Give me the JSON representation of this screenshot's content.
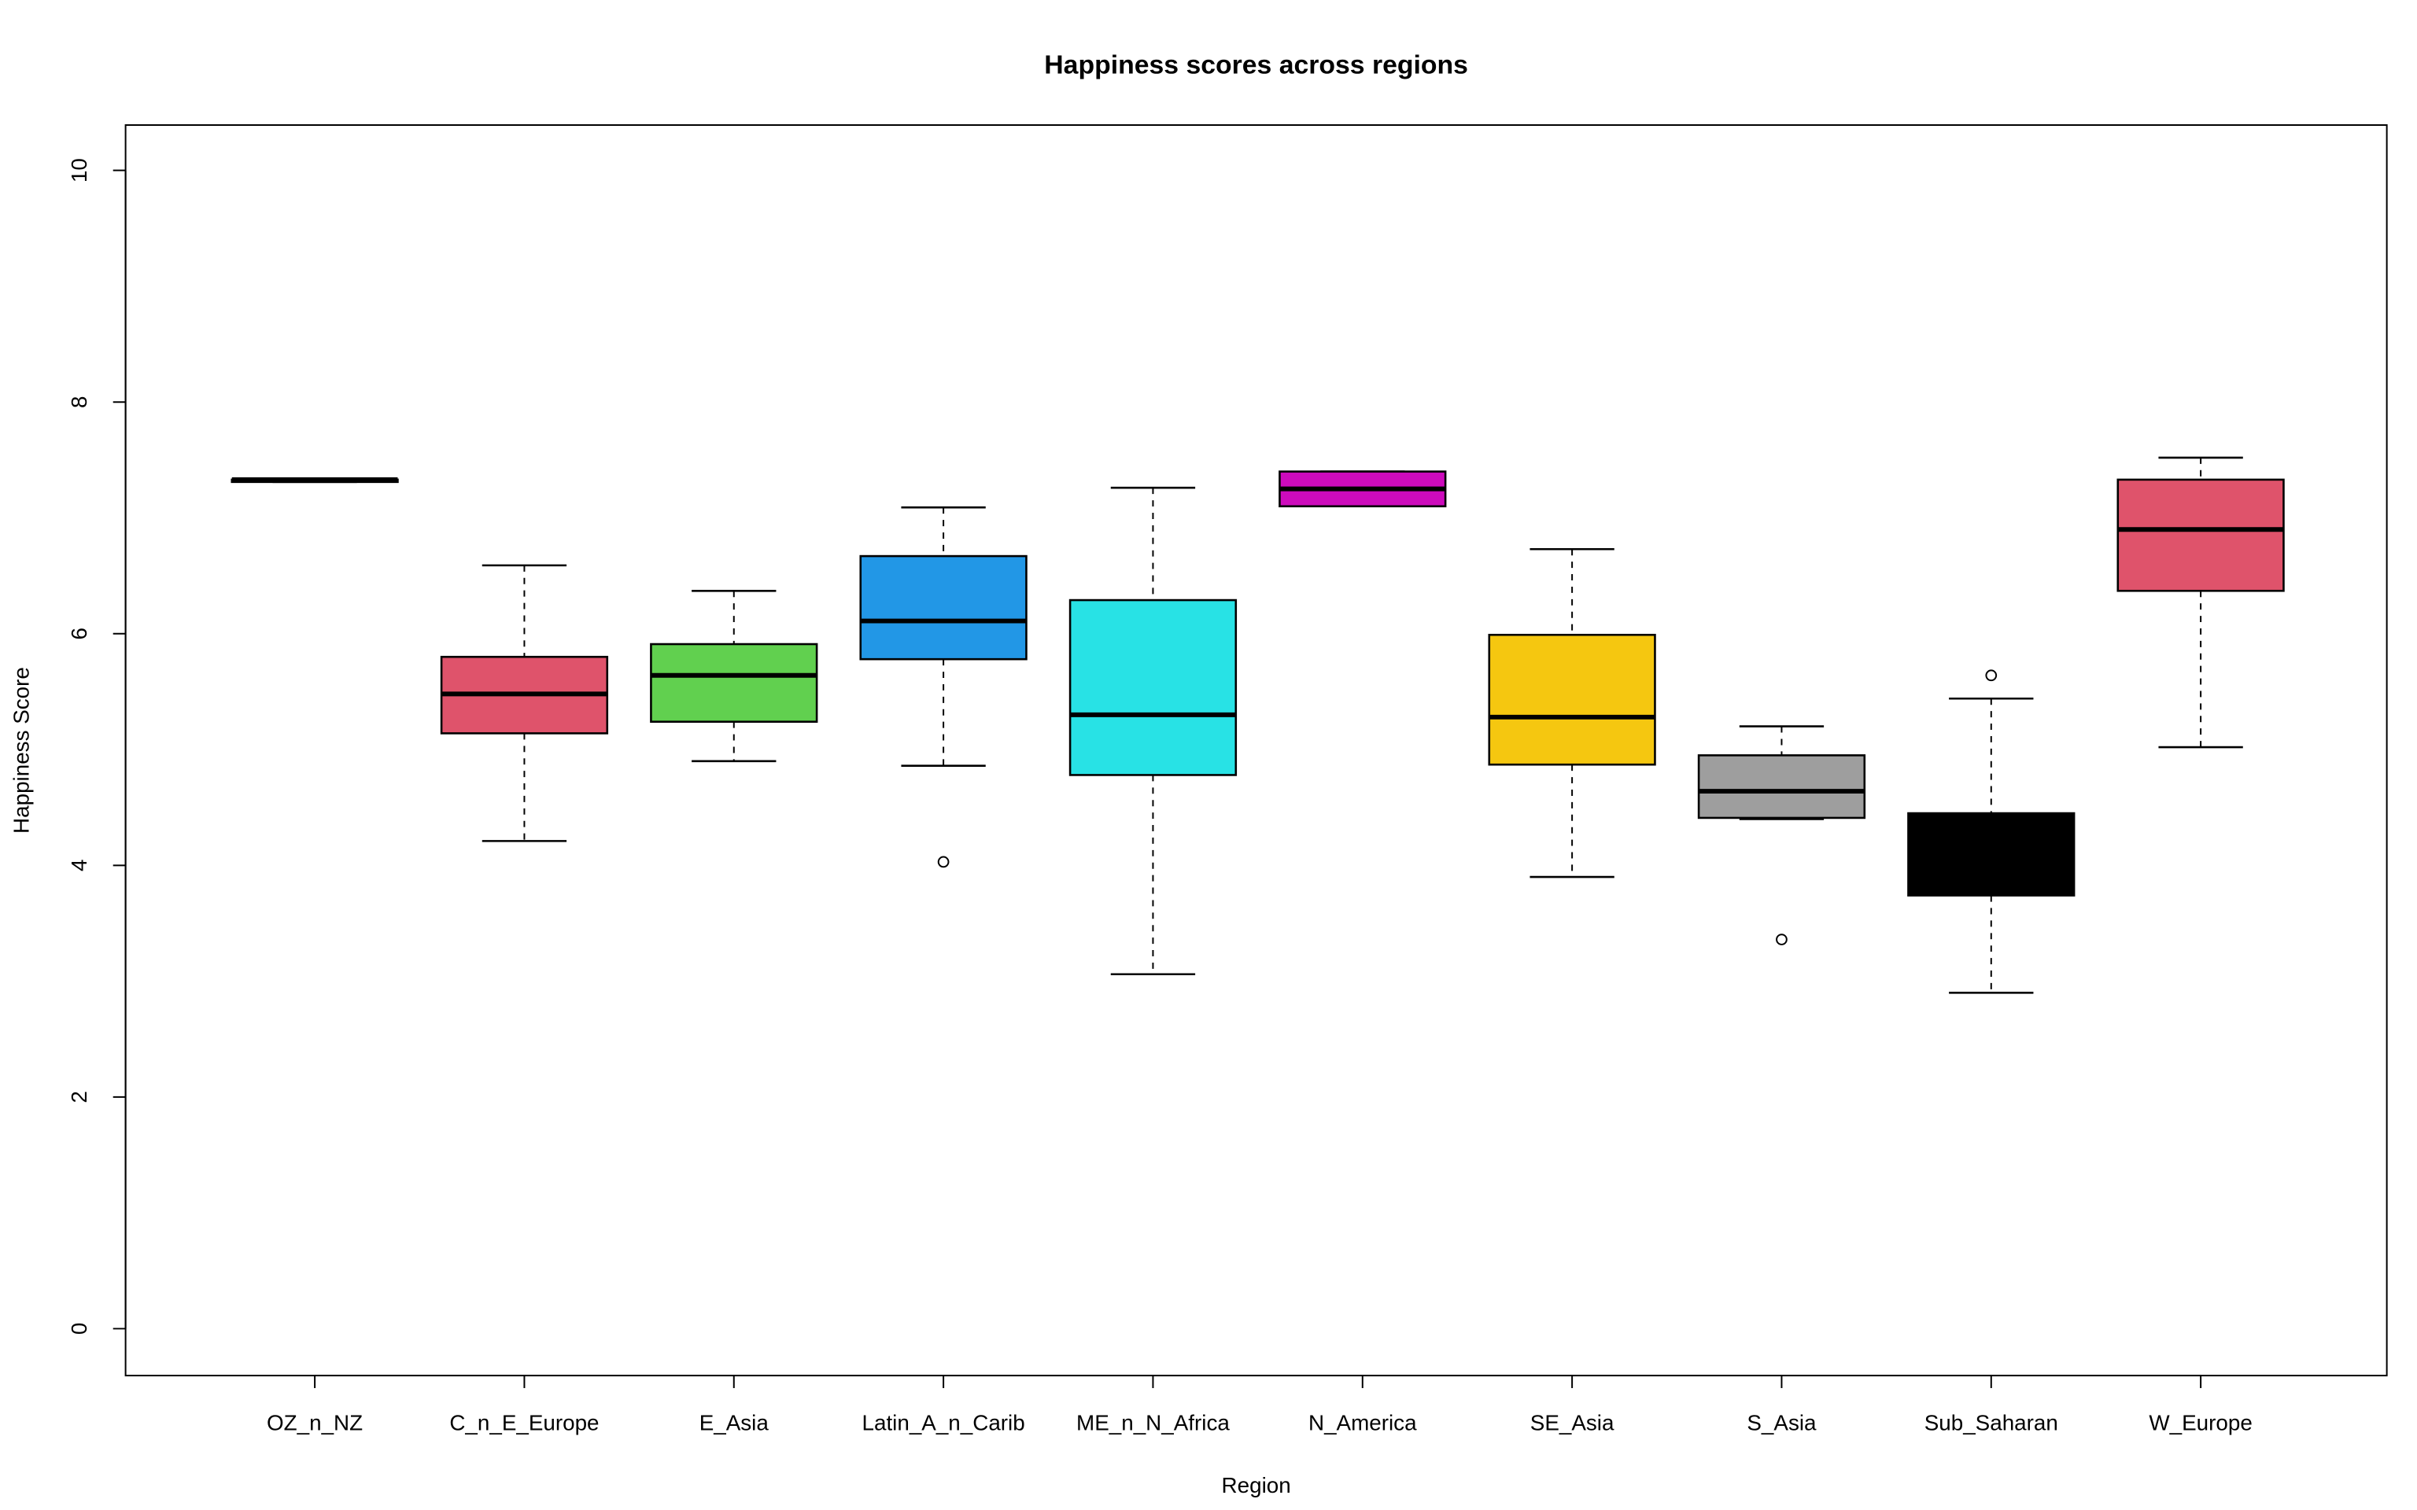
{
  "chart_data": {
    "type": "boxplot",
    "title": "Happiness scores across regions",
    "xlabel": "Region",
    "ylabel": "Happiness Score",
    "ylim": [
      0,
      10
    ],
    "yticks": [
      "0",
      "2",
      "4",
      "6",
      "8",
      "10"
    ],
    "grid": false,
    "categories": [
      "OZ_n_NZ",
      "C_n_E_Europe",
      "E_Asia",
      "Latin_A_n_Carib",
      "ME_n_N_Africa",
      "N_America",
      "SE_Asia",
      "S_Asia",
      "Sub_Saharan",
      "W_Europe"
    ],
    "boxes": [
      {
        "min": 7.31,
        "q1": 7.31,
        "median": 7.33,
        "q3": 7.33,
        "max": 7.33,
        "outliers": [],
        "color": "#000000"
      },
      {
        "min": 4.21,
        "q1": 5.14,
        "median": 5.48,
        "q3": 5.8,
        "max": 6.59,
        "outliers": [],
        "color": "#DF536B"
      },
      {
        "min": 4.9,
        "q1": 5.24,
        "median": 5.64,
        "q3": 5.91,
        "max": 6.37,
        "outliers": [],
        "color": "#61D04F"
      },
      {
        "min": 4.86,
        "q1": 5.78,
        "median": 6.11,
        "q3": 6.67,
        "max": 7.09,
        "outliers": [
          4.03
        ],
        "color": "#2297E6"
      },
      {
        "min": 3.06,
        "q1": 4.78,
        "median": 5.3,
        "q3": 6.29,
        "max": 7.26,
        "outliers": [],
        "color": "#28E2E5"
      },
      {
        "min": 7.1,
        "q1": 7.1,
        "median": 7.25,
        "q3": 7.4,
        "max": 7.4,
        "outliers": [],
        "color": "#CD0BBC"
      },
      {
        "min": 3.9,
        "q1": 4.87,
        "median": 5.28,
        "q3": 5.99,
        "max": 6.73,
        "outliers": [],
        "color": "#F5C710"
      },
      {
        "min": 4.4,
        "q1": 4.41,
        "median": 4.64,
        "q3": 4.95,
        "max": 5.2,
        "outliers": [
          3.36
        ],
        "color": "#9E9E9E"
      },
      {
        "min": 2.9,
        "q1": 3.74,
        "median": 4.2,
        "q3": 4.45,
        "max": 5.44,
        "outliers": [
          5.64
        ],
        "color": "#000000"
      },
      {
        "min": 5.02,
        "q1": 6.37,
        "median": 6.9,
        "q3": 7.33,
        "max": 7.52,
        "outliers": [],
        "color": "#DF536B"
      }
    ]
  }
}
